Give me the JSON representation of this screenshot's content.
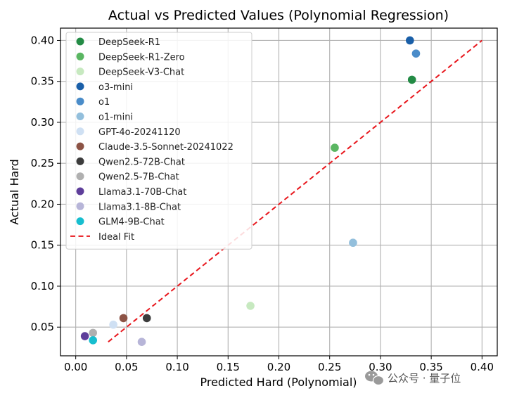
{
  "chart_data": {
    "type": "scatter",
    "title": "Actual vs Predicted Values (Polynomial Regression)",
    "xlabel": "Predicted Hard (Polynomial)",
    "ylabel": "Actual Hard",
    "xlim": [
      -0.015,
      0.415
    ],
    "ylim": [
      0.015,
      0.415
    ],
    "xticks": [
      "0.00",
      "0.05",
      "0.10",
      "0.15",
      "0.20",
      "0.25",
      "0.30",
      "0.35",
      "0.40"
    ],
    "yticks": [
      "0.05",
      "0.10",
      "0.15",
      "0.20",
      "0.25",
      "0.30",
      "0.35",
      "0.40"
    ],
    "grid": true,
    "legend_position": "top-left",
    "series": [
      {
        "name": "DeepSeek-R1",
        "color": "#238b45",
        "x": 0.331,
        "y": 0.352
      },
      {
        "name": "DeepSeek-R1-Zero",
        "color": "#5ab662",
        "x": 0.255,
        "y": 0.269
      },
      {
        "name": "DeepSeek-V3-Chat",
        "color": "#c7e9c0",
        "x": 0.172,
        "y": 0.076
      },
      {
        "name": "o3-mini",
        "color": "#1a5fa8",
        "x": 0.329,
        "y": 0.4
      },
      {
        "name": "o1",
        "color": "#4a8cc9",
        "x": 0.335,
        "y": 0.384
      },
      {
        "name": "o1-mini",
        "color": "#93bfdc",
        "x": 0.273,
        "y": 0.153
      },
      {
        "name": "GPT-4o-20241120",
        "color": "#cfe0f3",
        "x": 0.037,
        "y": 0.053
      },
      {
        "name": "Claude-3.5-Sonnet-20241022",
        "color": "#8c5345",
        "x": 0.047,
        "y": 0.061
      },
      {
        "name": "Qwen2.5-72B-Chat",
        "color": "#3c3c3c",
        "x": 0.07,
        "y": 0.061
      },
      {
        "name": "Qwen2.5-7B-Chat",
        "color": "#b0b0b0",
        "x": 0.017,
        "y": 0.043
      },
      {
        "name": "Llama3.1-70B-Chat",
        "color": "#5e3e9a",
        "x": 0.009,
        "y": 0.039
      },
      {
        "name": "Llama3.1-8B-Chat",
        "color": "#b7b5d8",
        "x": 0.065,
        "y": 0.032
      },
      {
        "name": "GLM4-9B-Chat",
        "color": "#17becf",
        "x": 0.017,
        "y": 0.034
      }
    ],
    "ideal_fit": {
      "name": "Ideal Fit",
      "color": "#e8161c",
      "x": [
        0.032,
        0.4
      ],
      "y": [
        0.032,
        0.4
      ]
    }
  },
  "watermark": {
    "text": "公众号 · 量子位"
  },
  "colors": {
    "grid": "#b0b0b0",
    "axes": "#000000"
  }
}
